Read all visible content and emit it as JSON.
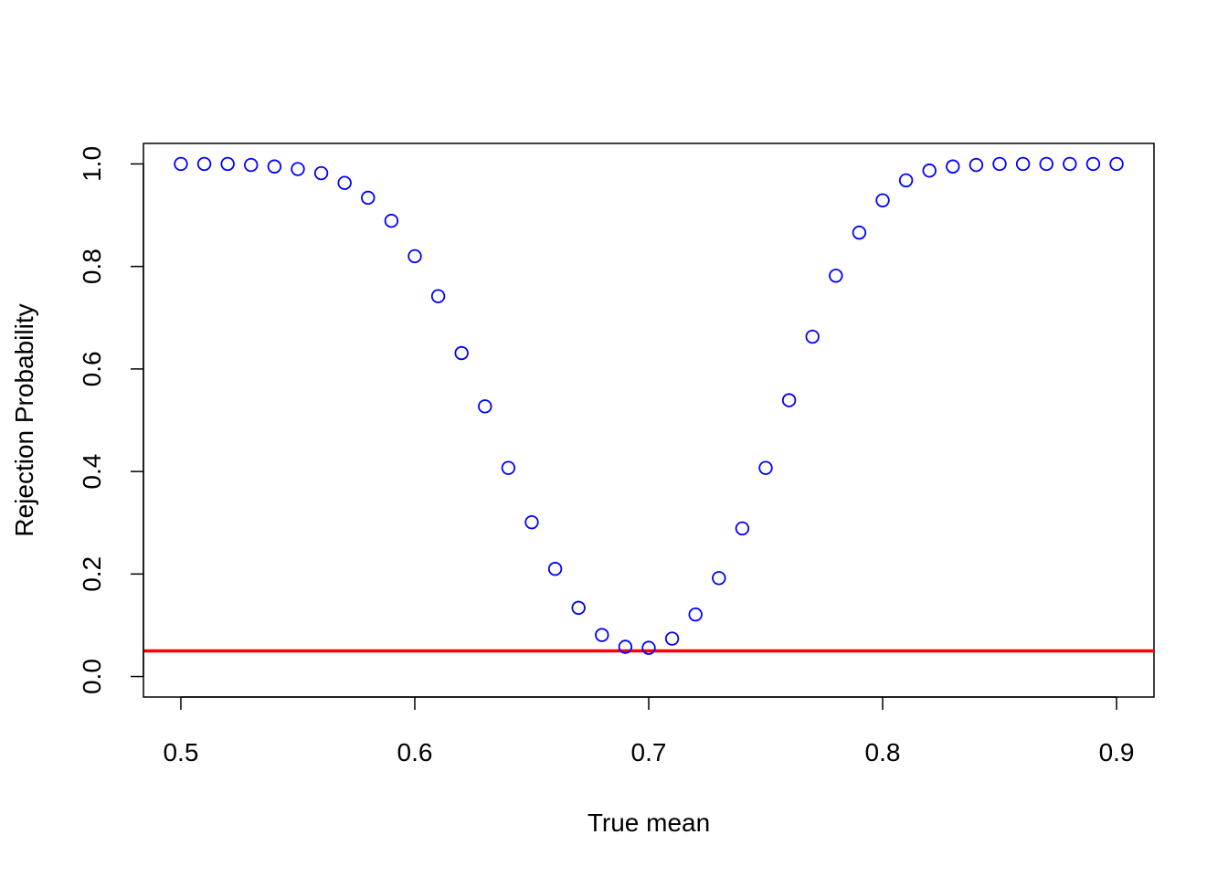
{
  "chart_data": {
    "type": "scatter",
    "xlabel": "True mean",
    "ylabel": "Rejection Probability",
    "xlim": [
      0.484,
      0.916
    ],
    "ylim": [
      -0.04,
      1.04
    ],
    "x_ticks": [
      0.5,
      0.6,
      0.7,
      0.8,
      0.9
    ],
    "x_tick_labels": [
      "0.5",
      "0.6",
      "0.7",
      "0.8",
      "0.9"
    ],
    "y_ticks": [
      0.0,
      0.2,
      0.4,
      0.6,
      0.8,
      1.0
    ],
    "y_tick_labels": [
      "0.0",
      "0.2",
      "0.4",
      "0.6",
      "0.8",
      "1.0"
    ],
    "grid": false,
    "legend": "none",
    "point_color": "#0000ff",
    "series": [
      {
        "x": [
          0.5,
          0.51,
          0.52,
          0.53,
          0.54,
          0.55,
          0.56,
          0.57,
          0.58,
          0.59,
          0.6,
          0.61,
          0.62,
          0.63,
          0.64,
          0.65,
          0.66,
          0.67,
          0.68,
          0.69,
          0.7,
          0.71,
          0.72,
          0.73,
          0.74,
          0.75,
          0.76,
          0.77,
          0.78,
          0.79,
          0.8,
          0.81,
          0.82,
          0.83,
          0.84,
          0.85,
          0.86,
          0.87,
          0.88,
          0.89,
          0.9
        ],
        "y": [
          1.0,
          1.0,
          1.0,
          0.998,
          0.995,
          0.99,
          0.982,
          0.963,
          0.934,
          0.889,
          0.82,
          0.742,
          0.631,
          0.527,
          0.407,
          0.301,
          0.21,
          0.134,
          0.081,
          0.058,
          0.056,
          0.074,
          0.121,
          0.192,
          0.289,
          0.407,
          0.539,
          0.663,
          0.782,
          0.866,
          0.929,
          0.968,
          0.987,
          0.995,
          0.998,
          1.0,
          1.0,
          1.0,
          1.0,
          1.0,
          1.0
        ]
      }
    ],
    "reference_line": {
      "y": 0.05,
      "color": "#ff0000"
    }
  }
}
